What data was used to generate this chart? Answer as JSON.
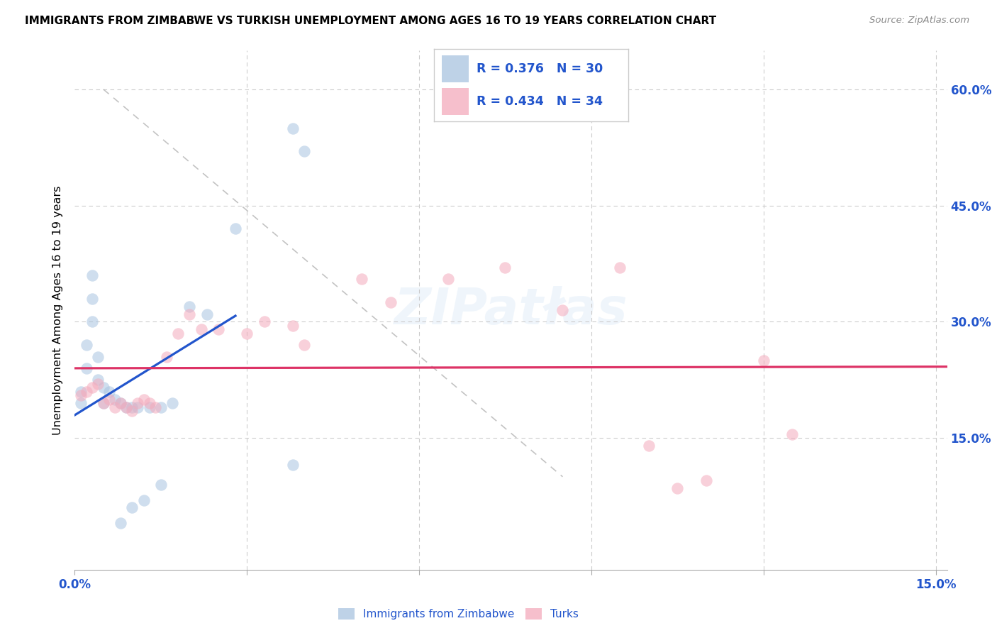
{
  "title": "IMMIGRANTS FROM ZIMBABWE VS TURKISH UNEMPLOYMENT AMONG AGES 16 TO 19 YEARS CORRELATION CHART",
  "source": "Source: ZipAtlas.com",
  "ylabel": "Unemployment Among Ages 16 to 19 years",
  "legend_r1": "0.376",
  "legend_n1": "30",
  "legend_r2": "0.434",
  "legend_n2": "34",
  "blue_fill": "#A8C4E0",
  "pink_fill": "#F4AABC",
  "blue_line_color": "#2255CC",
  "pink_line_color": "#DD3366",
  "legend_text_color": "#2255CC",
  "grid_color": "#CCCCCC",
  "xlim": [
    0.0,
    0.152
  ],
  "ylim": [
    -0.02,
    0.65
  ],
  "yticks": [
    0.15,
    0.3,
    0.45,
    0.6
  ],
  "ytick_labels": [
    "15.0%",
    "30.0%",
    "45.0%",
    "60.0%"
  ],
  "xticks": [
    0.0,
    0.03,
    0.06,
    0.09,
    0.12,
    0.15
  ],
  "xtick_labels": [
    "0.0%",
    "",
    "",
    "",
    "",
    "15.0%"
  ],
  "scatter_size": 140,
  "blue_x": [
    0.001,
    0.001,
    0.002,
    0.002,
    0.003,
    0.003,
    0.003,
    0.004,
    0.004,
    0.005,
    0.005,
    0.006,
    0.007,
    0.008,
    0.009,
    0.01,
    0.011,
    0.013,
    0.015,
    0.017,
    0.02,
    0.023,
    0.028,
    0.038,
    0.04,
    0.008,
    0.01,
    0.012,
    0.015,
    0.038
  ],
  "blue_y": [
    0.195,
    0.21,
    0.24,
    0.27,
    0.3,
    0.33,
    0.36,
    0.255,
    0.225,
    0.215,
    0.195,
    0.21,
    0.2,
    0.195,
    0.19,
    0.19,
    0.19,
    0.19,
    0.19,
    0.195,
    0.32,
    0.31,
    0.42,
    0.55,
    0.52,
    0.04,
    0.06,
    0.07,
    0.09,
    0.115
  ],
  "pink_x": [
    0.001,
    0.002,
    0.003,
    0.004,
    0.005,
    0.006,
    0.007,
    0.008,
    0.009,
    0.01,
    0.011,
    0.012,
    0.013,
    0.014,
    0.016,
    0.018,
    0.02,
    0.022,
    0.025,
    0.03,
    0.033,
    0.038,
    0.04,
    0.05,
    0.055,
    0.065,
    0.075,
    0.085,
    0.095,
    0.1,
    0.105,
    0.11,
    0.12,
    0.125
  ],
  "pink_y": [
    0.205,
    0.21,
    0.215,
    0.22,
    0.195,
    0.2,
    0.19,
    0.195,
    0.19,
    0.185,
    0.195,
    0.2,
    0.195,
    0.19,
    0.255,
    0.285,
    0.31,
    0.29,
    0.29,
    0.285,
    0.3,
    0.295,
    0.27,
    0.355,
    0.325,
    0.355,
    0.37,
    0.315,
    0.37,
    0.14,
    0.085,
    0.095,
    0.25,
    0.155
  ]
}
